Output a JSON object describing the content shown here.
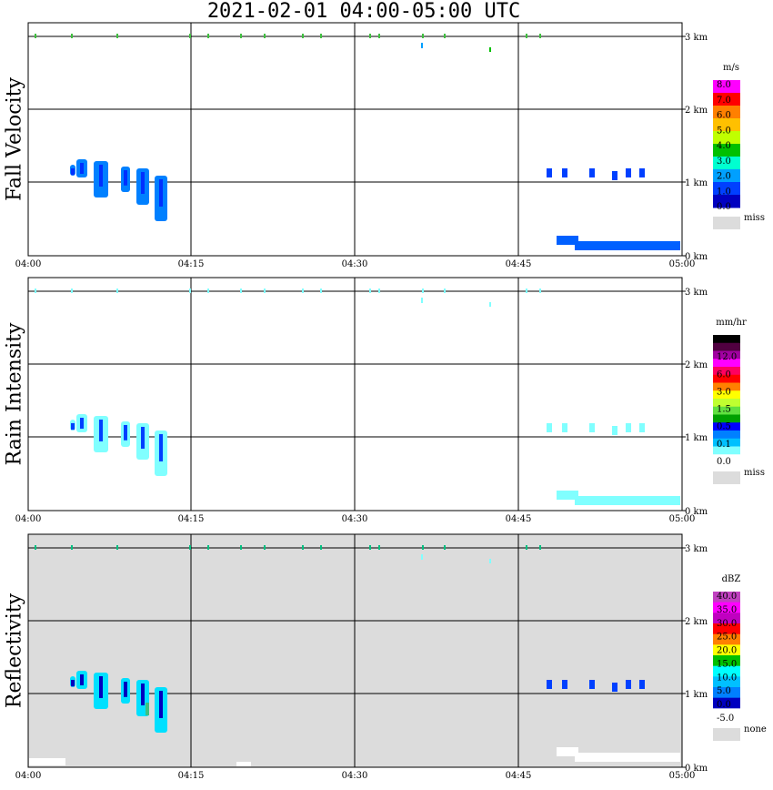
{
  "title": "2021-02-01   04:00-05:00 UTC",
  "chart_data": [
    {
      "type": "heatmap",
      "ylabel": "Fall Velocity",
      "background": "#ffffff",
      "x_ticks": [
        "04:00",
        "04:15",
        "04:30",
        "04:45",
        "05:00"
      ],
      "y_ticks": [
        "0 km",
        "1 km",
        "2 km",
        "3 km"
      ],
      "colorbar": {
        "unit": "m/s",
        "labels": [
          "8.0",
          "7.0",
          "6.0",
          "5.0",
          "4.0",
          "3.0",
          "2.0",
          "1.0",
          "0.0"
        ],
        "colors": [
          "#ff00ff",
          "#ff0000",
          "#ff8000",
          "#ffc000",
          "#c0ff00",
          "#00c000",
          "#00ffd0",
          "#00a0ff",
          "#0040ff",
          "#0000c0"
        ],
        "missing_label": "miss"
      }
    },
    {
      "type": "heatmap",
      "ylabel": "Rain Intensity",
      "background": "#ffffff",
      "x_ticks": [
        "04:00",
        "04:15",
        "04:30",
        "04:45",
        "05:00"
      ],
      "y_ticks": [
        "0 km",
        "1 km",
        "2 km",
        "3 km"
      ],
      "colorbar": {
        "unit": "mm/hr",
        "labels": [
          "48.0",
          "12.0",
          "6.0",
          "3.0",
          "1.5",
          "0.5",
          "0.1",
          "0.0"
        ],
        "colors": [
          "#000000",
          "#500040",
          "#a000a0",
          "#ff00ff",
          "#ff0060",
          "#ff0000",
          "#ff8000",
          "#ffff00",
          "#c0ff30",
          "#60e040",
          "#00a000",
          "#0000ff",
          "#0080ff",
          "#00c0ff",
          "#80ffff",
          "#ffffff"
        ],
        "missing_label": "miss"
      }
    },
    {
      "type": "heatmap",
      "ylabel": "Reflectivity",
      "background": "#dcdcdc",
      "x_ticks": [
        "04:00",
        "04:15",
        "04:30",
        "04:45",
        "05:00"
      ],
      "y_ticks": [
        "0 km",
        "1 km",
        "2 km",
        "3 km"
      ],
      "colorbar": {
        "unit": "dBZ",
        "labels": [
          "40.0",
          "35.0",
          "30.0",
          "25.0",
          "20.0",
          "15.0",
          "10.0",
          "5.0",
          "0.0",
          "-5.0"
        ],
        "colors": [
          "#c040c0",
          "#ff00ff",
          "#c000c0",
          "#ff0000",
          "#ff8000",
          "#ffff00",
          "#00c000",
          "#00ffff",
          "#00c0ff",
          "#0080ff",
          "#0000c0",
          "#ffffff"
        ],
        "missing_label": "none"
      }
    }
  ]
}
